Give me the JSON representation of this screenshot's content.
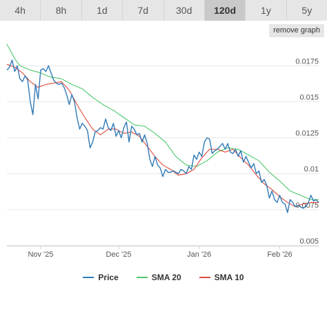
{
  "tabs": [
    {
      "label": "4h",
      "active": false
    },
    {
      "label": "8h",
      "active": false
    },
    {
      "label": "1d",
      "active": false
    },
    {
      "label": "7d",
      "active": false
    },
    {
      "label": "30d",
      "active": false
    },
    {
      "label": "120d",
      "active": true
    },
    {
      "label": "1y",
      "active": false
    },
    {
      "label": "5y",
      "active": false
    }
  ],
  "remove_graph_label": "remove graph",
  "colors": {
    "price": "#2f7ab7",
    "sma20": "#4cc86b",
    "sma10": "#e0483c"
  },
  "chart_data": {
    "type": "line",
    "y_ticks": [
      "0.005",
      "0.0075",
      "0.01",
      "0.0125",
      "0.015",
      "0.0175"
    ],
    "ylim": [
      0.005,
      0.019
    ],
    "x_ticks": [
      "Nov '25",
      "Dec '25",
      "Jan '26",
      "Feb '26"
    ],
    "x_tick_days": [
      13,
      43,
      74,
      105
    ],
    "xlim": [
      0,
      120
    ],
    "legend_position": "bottom",
    "grid": true,
    "series": [
      {
        "name": "Price",
        "key": "price",
        "points": [
          [
            0,
            0.0172
          ],
          [
            1,
            0.0174
          ],
          [
            2,
            0.0179
          ],
          [
            3,
            0.0171
          ],
          [
            4,
            0.0175
          ],
          [
            5,
            0.0166
          ],
          [
            6,
            0.0164
          ],
          [
            7,
            0.0168
          ],
          [
            8,
            0.0165
          ],
          [
            9,
            0.015
          ],
          [
            10,
            0.0141
          ],
          [
            11,
            0.0162
          ],
          [
            12,
            0.0152
          ],
          [
            13,
            0.0172
          ],
          [
            14,
            0.0173
          ],
          [
            15,
            0.0171
          ],
          [
            16,
            0.0175
          ],
          [
            17,
            0.017
          ],
          [
            18,
            0.0165
          ],
          [
            19,
            0.0163
          ],
          [
            20,
            0.0162
          ],
          [
            21,
            0.0163
          ],
          [
            22,
            0.016
          ],
          [
            23,
            0.0155
          ],
          [
            24,
            0.0148
          ],
          [
            25,
            0.0155
          ],
          [
            26,
            0.015
          ],
          [
            27,
            0.0139
          ],
          [
            28,
            0.0131
          ],
          [
            29,
            0.0135
          ],
          [
            30,
            0.0133
          ],
          [
            31,
            0.013
          ],
          [
            32,
            0.0118
          ],
          [
            33,
            0.0122
          ],
          [
            34,
            0.0129
          ],
          [
            35,
            0.013
          ],
          [
            36,
            0.0132
          ],
          [
            37,
            0.0131
          ],
          [
            38,
            0.0138
          ],
          [
            39,
            0.0132
          ],
          [
            40,
            0.013
          ],
          [
            41,
            0.0135
          ],
          [
            42,
            0.0126
          ],
          [
            43,
            0.013
          ],
          [
            44,
            0.0125
          ],
          [
            45,
            0.0132
          ],
          [
            46,
            0.0136
          ],
          [
            47,
            0.0122
          ],
          [
            48,
            0.0133
          ],
          [
            49,
            0.0131
          ],
          [
            50,
            0.0127
          ],
          [
            51,
            0.0128
          ],
          [
            52,
            0.0122
          ],
          [
            53,
            0.0127
          ],
          [
            54,
            0.0121
          ],
          [
            55,
            0.011
          ],
          [
            56,
            0.0105
          ],
          [
            57,
            0.0112
          ],
          [
            58,
            0.0106
          ],
          [
            59,
            0.0104
          ],
          [
            60,
            0.0098
          ],
          [
            61,
            0.0103
          ],
          [
            62,
            0.0101
          ],
          [
            63,
            0.0101
          ],
          [
            64,
            0.0102
          ],
          [
            65,
            0.0101
          ],
          [
            66,
            0.01
          ],
          [
            67,
            0.0103
          ],
          [
            68,
            0.0102
          ],
          [
            69,
            0.01
          ],
          [
            70,
            0.0105
          ],
          [
            71,
            0.0103
          ],
          [
            72,
            0.0113
          ],
          [
            73,
            0.011
          ],
          [
            74,
            0.0115
          ],
          [
            75,
            0.0112
          ],
          [
            76,
            0.0122
          ],
          [
            77,
            0.0125
          ],
          [
            78,
            0.0124
          ],
          [
            79,
            0.0114
          ],
          [
            80,
            0.0116
          ],
          [
            81,
            0.0117
          ],
          [
            82,
            0.0119
          ],
          [
            83,
            0.0121
          ],
          [
            84,
            0.0117
          ],
          [
            85,
            0.0121
          ],
          [
            86,
            0.0115
          ],
          [
            87,
            0.0114
          ],
          [
            88,
            0.0117
          ],
          [
            89,
            0.0112
          ],
          [
            90,
            0.0116
          ],
          [
            91,
            0.0108
          ],
          [
            92,
            0.0112
          ],
          [
            93,
            0.0108
          ],
          [
            94,
            0.0104
          ],
          [
            95,
            0.0107
          ],
          [
            96,
            0.01
          ],
          [
            97,
            0.0102
          ],
          [
            98,
            0.0094
          ],
          [
            99,
            0.0096
          ],
          [
            100,
            0.0092
          ],
          [
            101,
            0.0083
          ],
          [
            102,
            0.0088
          ],
          [
            103,
            0.0082
          ],
          [
            104,
            0.008
          ],
          [
            105,
            0.0085
          ],
          [
            106,
            0.008
          ],
          [
            107,
            0.0079
          ],
          [
            108,
            0.0073
          ],
          [
            109,
            0.0082
          ],
          [
            110,
            0.008
          ],
          [
            111,
            0.0077
          ],
          [
            112,
            0.0078
          ],
          [
            113,
            0.0077
          ],
          [
            114,
            0.0076
          ],
          [
            115,
            0.0077
          ],
          [
            116,
            0.008
          ],
          [
            117,
            0.0085
          ],
          [
            118,
            0.0081
          ],
          [
            119,
            0.0082
          ],
          [
            120,
            0.008
          ]
        ]
      },
      {
        "name": "SMA 20",
        "key": "sma20",
        "points": [
          [
            0,
            0.019
          ],
          [
            3,
            0.018
          ],
          [
            5,
            0.0175
          ],
          [
            9,
            0.0172
          ],
          [
            13,
            0.017
          ],
          [
            17,
            0.0167
          ],
          [
            21,
            0.0166
          ],
          [
            25,
            0.0162
          ],
          [
            29,
            0.0159
          ],
          [
            33,
            0.0153
          ],
          [
            37,
            0.0148
          ],
          [
            41,
            0.0144
          ],
          [
            45,
            0.0139
          ],
          [
            49,
            0.0134
          ],
          [
            53,
            0.0133
          ],
          [
            57,
            0.0128
          ],
          [
            61,
            0.0122
          ],
          [
            65,
            0.0112
          ],
          [
            69,
            0.0106
          ],
          [
            73,
            0.0105
          ],
          [
            77,
            0.0109
          ],
          [
            81,
            0.0115
          ],
          [
            85,
            0.0118
          ],
          [
            89,
            0.0117
          ],
          [
            93,
            0.0113
          ],
          [
            97,
            0.0109
          ],
          [
            101,
            0.0101
          ],
          [
            105,
            0.0095
          ],
          [
            109,
            0.0088
          ],
          [
            113,
            0.0085
          ],
          [
            117,
            0.0082
          ],
          [
            120,
            0.0082
          ]
        ]
      },
      {
        "name": "SMA 10",
        "key": "sma10",
        "points": [
          [
            0,
            0.0176
          ],
          [
            3,
            0.0174
          ],
          [
            6,
            0.017
          ],
          [
            9,
            0.0164
          ],
          [
            12,
            0.016
          ],
          [
            15,
            0.0162
          ],
          [
            18,
            0.0163
          ],
          [
            21,
            0.0164
          ],
          [
            24,
            0.0158
          ],
          [
            27,
            0.0148
          ],
          [
            30,
            0.0139
          ],
          [
            33,
            0.0131
          ],
          [
            36,
            0.0127
          ],
          [
            39,
            0.0131
          ],
          [
            42,
            0.0131
          ],
          [
            45,
            0.0128
          ],
          [
            48,
            0.0129
          ],
          [
            51,
            0.0126
          ],
          [
            54,
            0.0119
          ],
          [
            57,
            0.0112
          ],
          [
            60,
            0.0106
          ],
          [
            63,
            0.0103
          ],
          [
            66,
            0.0099
          ],
          [
            69,
            0.01
          ],
          [
            72,
            0.0103
          ],
          [
            75,
            0.0111
          ],
          [
            78,
            0.0117
          ],
          [
            81,
            0.0117
          ],
          [
            84,
            0.0115
          ],
          [
            87,
            0.0117
          ],
          [
            90,
            0.0111
          ],
          [
            93,
            0.0106
          ],
          [
            96,
            0.0099
          ],
          [
            99,
            0.0093
          ],
          [
            102,
            0.0089
          ],
          [
            105,
            0.0084
          ],
          [
            108,
            0.008
          ],
          [
            111,
            0.0077
          ],
          [
            114,
            0.0079
          ],
          [
            117,
            0.008
          ],
          [
            120,
            0.008
          ]
        ]
      }
    ]
  }
}
